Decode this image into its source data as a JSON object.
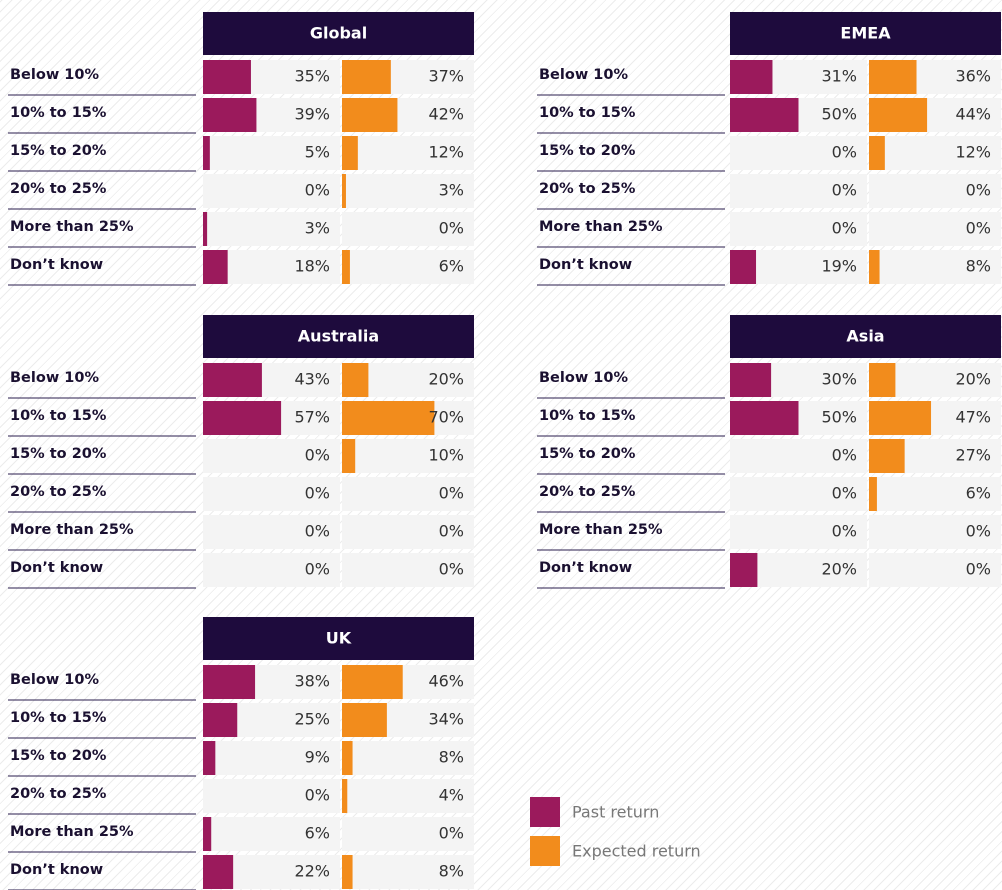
{
  "legend": [
    {
      "name": "Past return",
      "color": "#9b1a5c"
    },
    {
      "name": "Expected return",
      "color": "#f28c1c"
    }
  ],
  "chart_data": [
    {
      "type": "bar",
      "title": "Global",
      "xlim": [
        0,
        100
      ],
      "categories": [
        "Below 10%",
        "10% to 15%",
        "15% to 20%",
        "20% to 25%",
        "More than 25%",
        "Don’t know"
      ],
      "series": [
        {
          "values": [
            35,
            39,
            5,
            0,
            3,
            18
          ],
          "value_labels": [
            "35%",
            "39%",
            "5%",
            "0%",
            "3%",
            "18%"
          ]
        },
        {
          "values": [
            37,
            42,
            12,
            3,
            0,
            6
          ],
          "value_labels": [
            "37%",
            "42%",
            "12%",
            "3%",
            "0%",
            "6%"
          ]
        }
      ]
    },
    {
      "type": "bar",
      "title": "EMEA",
      "xlim": [
        0,
        100
      ],
      "categories": [
        "Below 10%",
        "10% to 15%",
        "15% to 20%",
        "20% to 25%",
        "More than 25%",
        "Don’t know"
      ],
      "series": [
        {
          "values": [
            31,
            50,
            0,
            0,
            0,
            19
          ],
          "value_labels": [
            "31%",
            "50%",
            "0%",
            "0%",
            "0%",
            "19%"
          ]
        },
        {
          "values": [
            36,
            44,
            12,
            0,
            0,
            8
          ],
          "value_labels": [
            "36%",
            "44%",
            "12%",
            "0%",
            "0%",
            "8%"
          ]
        }
      ]
    },
    {
      "type": "bar",
      "title": "Australia",
      "xlim": [
        0,
        100
      ],
      "categories": [
        "Below 10%",
        "10% to 15%",
        "15% to 20%",
        "20% to 25%",
        "More than 25%",
        "Don’t know"
      ],
      "series": [
        {
          "values": [
            43,
            57,
            0,
            0,
            0,
            0
          ],
          "value_labels": [
            "43%",
            "57%",
            "0%",
            "0%",
            "0%",
            "0%"
          ]
        },
        {
          "values": [
            20,
            70,
            10,
            0,
            0,
            0
          ],
          "value_labels": [
            "20%",
            "70%",
            "10%",
            "0%",
            "0%",
            "0%"
          ]
        }
      ]
    },
    {
      "type": "bar",
      "title": "Asia",
      "xlim": [
        0,
        100
      ],
      "categories": [
        "Below 10%",
        "10% to 15%",
        "15% to 20%",
        "20% to 25%",
        "More than 25%",
        "Don’t know"
      ],
      "series": [
        {
          "values": [
            30,
            50,
            0,
            0,
            0,
            20
          ],
          "value_labels": [
            "30%",
            "50%",
            "0%",
            "0%",
            "0%",
            "20%"
          ]
        },
        {
          "values": [
            20,
            47,
            27,
            6,
            0,
            0
          ],
          "value_labels": [
            "20%",
            "47%",
            "27%",
            "6%",
            "0%",
            "0%"
          ]
        }
      ]
    },
    {
      "type": "bar",
      "title": "UK",
      "xlim": [
        0,
        100
      ],
      "categories": [
        "Below 10%",
        "10% to 15%",
        "15% to 20%",
        "20% to 25%",
        "More than 25%",
        "Don’t know"
      ],
      "series": [
        {
          "values": [
            38,
            25,
            9,
            0,
            6,
            22
          ],
          "value_labels": [
            "38%",
            "25%",
            "9%",
            "0%",
            "6%",
            "22%"
          ]
        },
        {
          "values": [
            46,
            34,
            8,
            4,
            0,
            8
          ],
          "value_labels": [
            "46%",
            "34%",
            "8%",
            "4%",
            "0%",
            "8%"
          ]
        }
      ]
    }
  ]
}
